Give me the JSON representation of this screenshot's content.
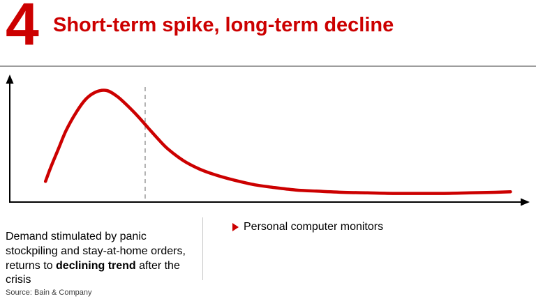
{
  "slide": {
    "number": "4",
    "title": "Short-term spike, long-term decline",
    "source": "Source: Bain & Company",
    "accent_color": "#cc0000"
  },
  "caption": {
    "text_before": "Demand stimulated by panic stockpiling and stay-at-home orders, returns to ",
    "text_bold": "declining trend",
    "text_after": " after the crisis"
  },
  "legend": {
    "items": [
      {
        "label": "Personal computer monitors",
        "marker": "red-triangle"
      }
    ]
  },
  "chart_data": {
    "type": "line",
    "title": "Short-term spike, long-term decline",
    "xlabel": "",
    "ylabel": "",
    "xlim": [
      0,
      100
    ],
    "ylim": [
      0,
      100
    ],
    "grid": false,
    "axes_arrows": true,
    "legend_entries": [
      "Personal computer monitors"
    ],
    "series": [
      {
        "name": "Personal computer monitors demand",
        "color": "#cc0000",
        "x": [
          7,
          8,
          9.5,
          11,
          13,
          15,
          17,
          19,
          21,
          23,
          25,
          27,
          29,
          31,
          34,
          37,
          40,
          44,
          48,
          52,
          56,
          60,
          65,
          70,
          75,
          80,
          85,
          90,
          95,
          98
        ],
        "values": [
          18,
          30,
          46,
          62,
          78,
          90,
          96,
          97,
          92,
          84,
          75,
          65,
          55,
          46,
          36,
          29,
          24,
          19,
          15,
          12.5,
          10.5,
          9.5,
          8.5,
          8,
          7.5,
          7.5,
          7.5,
          8,
          8.5,
          9
        ]
      }
    ],
    "annotations": [
      {
        "type": "vertical-dashed-line",
        "x": 26.5,
        "y_top": 100,
        "color": "#b3b3b3"
      }
    ]
  }
}
